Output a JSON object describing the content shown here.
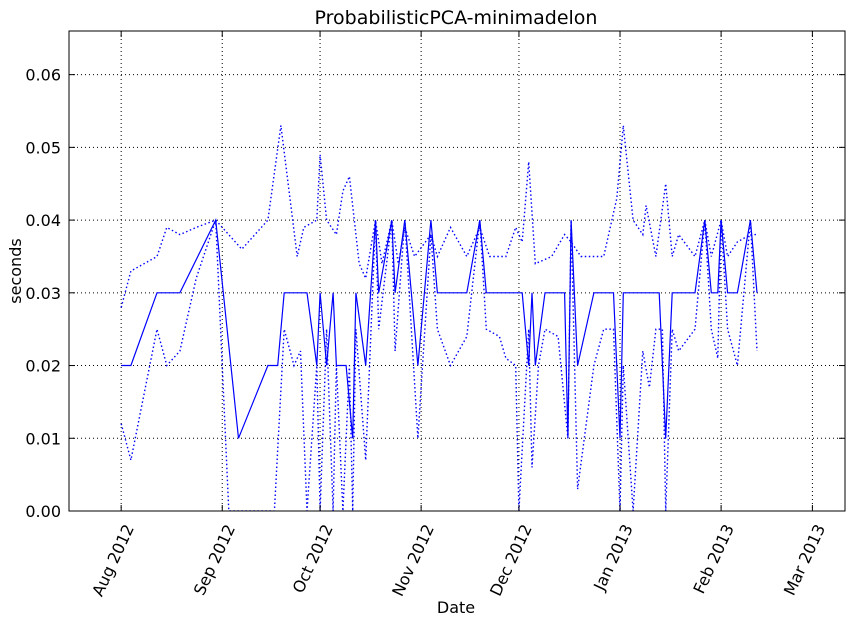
{
  "chart_data": {
    "type": "line",
    "title": "ProbabilisticPCA-minimadelon",
    "xlabel": "Date",
    "ylabel": "seconds",
    "xlim": [
      "2012-07-16",
      "2013-03-11"
    ],
    "ylim": [
      0,
      0.066
    ],
    "grid": true,
    "line_color": "#0000ff",
    "x_ticks": [
      {
        "date": "2012-08-01",
        "label": "Aug 2012"
      },
      {
        "date": "2012-09-01",
        "label": "Sep 2012"
      },
      {
        "date": "2012-10-01",
        "label": "Oct 2012"
      },
      {
        "date": "2012-11-01",
        "label": "Nov 2012"
      },
      {
        "date": "2012-12-01",
        "label": "Dec 2012"
      },
      {
        "date": "2013-01-01",
        "label": "Jan 2013"
      },
      {
        "date": "2013-02-01",
        "label": "Feb 2013"
      },
      {
        "date": "2013-03-01",
        "label": "Mar 2013"
      }
    ],
    "y_ticks": [
      {
        "value": 0.0,
        "label": "0.00"
      },
      {
        "value": 0.01,
        "label": "0.01"
      },
      {
        "value": 0.02,
        "label": "0.02"
      },
      {
        "value": 0.03,
        "label": "0.03"
      },
      {
        "value": 0.04,
        "label": "0.04"
      },
      {
        "value": 0.05,
        "label": "0.05"
      },
      {
        "value": 0.06,
        "label": "0.06"
      }
    ],
    "series": [
      {
        "style": "solid",
        "points": [
          [
            "2012-08-01",
            0.02
          ],
          [
            "2012-08-04",
            0.02
          ],
          [
            "2012-08-12",
            0.03
          ],
          [
            "2012-08-19",
            0.03
          ],
          [
            "2012-08-30",
            0.04
          ],
          [
            "2012-09-06",
            0.01
          ],
          [
            "2012-09-15",
            0.02
          ],
          [
            "2012-09-18",
            0.02
          ],
          [
            "2012-09-20",
            0.03
          ],
          [
            "2012-09-27",
            0.03
          ],
          [
            "2012-09-30",
            0.02
          ],
          [
            "2012-10-01",
            0.03
          ],
          [
            "2012-10-03",
            0.02
          ],
          [
            "2012-10-05",
            0.03
          ],
          [
            "2012-10-06",
            0.02
          ],
          [
            "2012-10-09",
            0.02
          ],
          [
            "2012-10-11",
            0.01
          ],
          [
            "2012-10-12",
            0.03
          ],
          [
            "2012-10-15",
            0.02
          ],
          [
            "2012-10-18",
            0.04
          ],
          [
            "2012-10-19",
            0.03
          ],
          [
            "2012-10-23",
            0.04
          ],
          [
            "2012-10-24",
            0.03
          ],
          [
            "2012-10-27",
            0.04
          ],
          [
            "2012-10-31",
            0.02
          ],
          [
            "2012-11-04",
            0.04
          ],
          [
            "2012-11-06",
            0.03
          ],
          [
            "2012-11-15",
            0.03
          ],
          [
            "2012-11-19",
            0.04
          ],
          [
            "2012-11-21",
            0.03
          ],
          [
            "2012-11-30",
            0.03
          ],
          [
            "2012-12-02",
            0.03
          ],
          [
            "2012-12-04",
            0.02
          ],
          [
            "2012-12-05",
            0.03
          ],
          [
            "2012-12-06",
            0.02
          ],
          [
            "2012-12-09",
            0.03
          ],
          [
            "2012-12-15",
            0.03
          ],
          [
            "2012-12-16",
            0.01
          ],
          [
            "2012-12-17",
            0.04
          ],
          [
            "2012-12-19",
            0.02
          ],
          [
            "2012-12-24",
            0.03
          ],
          [
            "2012-12-30",
            0.03
          ],
          [
            "2013-01-01",
            0.01
          ],
          [
            "2013-01-02",
            0.03
          ],
          [
            "2013-01-13",
            0.03
          ],
          [
            "2013-01-15",
            0.01
          ],
          [
            "2013-01-17",
            0.03
          ],
          [
            "2013-01-24",
            0.03
          ],
          [
            "2013-01-27",
            0.04
          ],
          [
            "2013-01-29",
            0.03
          ],
          [
            "2013-01-31",
            0.03
          ],
          [
            "2013-02-01",
            0.04
          ],
          [
            "2013-02-03",
            0.03
          ],
          [
            "2013-02-06",
            0.03
          ],
          [
            "2013-02-10",
            0.04
          ],
          [
            "2013-02-12",
            0.03
          ]
        ]
      },
      {
        "style": "dotted",
        "points": [
          [
            "2012-08-01",
            0.028
          ],
          [
            "2012-08-04",
            0.033
          ],
          [
            "2012-08-12",
            0.035
          ],
          [
            "2012-08-15",
            0.039
          ],
          [
            "2012-08-19",
            0.038
          ],
          [
            "2012-08-24",
            0.039
          ],
          [
            "2012-08-30",
            0.04
          ],
          [
            "2012-09-07",
            0.036
          ],
          [
            "2012-09-15",
            0.04
          ],
          [
            "2012-09-19",
            0.053
          ],
          [
            "2012-09-24",
            0.035
          ],
          [
            "2012-09-26",
            0.039
          ],
          [
            "2012-09-30",
            0.04
          ],
          [
            "2012-10-01",
            0.049
          ],
          [
            "2012-10-03",
            0.04
          ],
          [
            "2012-10-06",
            0.038
          ],
          [
            "2012-10-08",
            0.044
          ],
          [
            "2012-10-10",
            0.046
          ],
          [
            "2012-10-13",
            0.034
          ],
          [
            "2012-10-15",
            0.032
          ],
          [
            "2012-10-18",
            0.04
          ],
          [
            "2012-10-20",
            0.034
          ],
          [
            "2012-10-23",
            0.04
          ],
          [
            "2012-10-25",
            0.034
          ],
          [
            "2012-10-27",
            0.039
          ],
          [
            "2012-10-30",
            0.035
          ],
          [
            "2012-11-04",
            0.038
          ],
          [
            "2012-11-06",
            0.035
          ],
          [
            "2012-11-10",
            0.039
          ],
          [
            "2012-11-15",
            0.035
          ],
          [
            "2012-11-19",
            0.039
          ],
          [
            "2012-11-22",
            0.035
          ],
          [
            "2012-11-27",
            0.035
          ],
          [
            "2012-11-30",
            0.039
          ],
          [
            "2012-12-02",
            0.037
          ],
          [
            "2012-12-04",
            0.048
          ],
          [
            "2012-12-06",
            0.034
          ],
          [
            "2012-12-11",
            0.035
          ],
          [
            "2012-12-15",
            0.038
          ],
          [
            "2012-12-17",
            0.037
          ],
          [
            "2012-12-20",
            0.035
          ],
          [
            "2012-12-27",
            0.035
          ],
          [
            "2012-12-31",
            0.043
          ],
          [
            "2013-01-02",
            0.053
          ],
          [
            "2013-01-05",
            0.04
          ],
          [
            "2013-01-08",
            0.038
          ],
          [
            "2013-01-09",
            0.042
          ],
          [
            "2013-01-12",
            0.035
          ],
          [
            "2013-01-15",
            0.045
          ],
          [
            "2013-01-17",
            0.035
          ],
          [
            "2013-01-19",
            0.038
          ],
          [
            "2013-01-24",
            0.035
          ],
          [
            "2013-01-27",
            0.04
          ],
          [
            "2013-01-29",
            0.035
          ],
          [
            "2013-02-01",
            0.04
          ],
          [
            "2013-02-03",
            0.035
          ],
          [
            "2013-02-06",
            0.037
          ],
          [
            "2013-02-10",
            0.038
          ],
          [
            "2013-02-12",
            0.038
          ]
        ]
      },
      {
        "style": "dotted",
        "points": [
          [
            "2012-08-01",
            0.012
          ],
          [
            "2012-08-04",
            0.007
          ],
          [
            "2012-08-12",
            0.025
          ],
          [
            "2012-08-15",
            0.02
          ],
          [
            "2012-08-19",
            0.022
          ],
          [
            "2012-08-24",
            0.032
          ],
          [
            "2012-08-30",
            0.04
          ],
          [
            "2012-09-03",
            0.0
          ],
          [
            "2012-09-17",
            0.0
          ],
          [
            "2012-09-20",
            0.025
          ],
          [
            "2012-09-23",
            0.02
          ],
          [
            "2012-09-25",
            0.022
          ],
          [
            "2012-09-27",
            0.0
          ],
          [
            "2012-09-30",
            0.02
          ],
          [
            "2012-10-01",
            0.0
          ],
          [
            "2012-10-03",
            0.025
          ],
          [
            "2012-10-05",
            0.0
          ],
          [
            "2012-10-06",
            0.02
          ],
          [
            "2012-10-08",
            0.0
          ],
          [
            "2012-10-10",
            0.02
          ],
          [
            "2012-10-11",
            0.0
          ],
          [
            "2012-10-12",
            0.025
          ],
          [
            "2012-10-15",
            0.007
          ],
          [
            "2012-10-18",
            0.04
          ],
          [
            "2012-10-19",
            0.025
          ],
          [
            "2012-10-23",
            0.04
          ],
          [
            "2012-10-24",
            0.022
          ],
          [
            "2012-10-27",
            0.04
          ],
          [
            "2012-10-31",
            0.01
          ],
          [
            "2012-11-04",
            0.038
          ],
          [
            "2012-11-06",
            0.025
          ],
          [
            "2012-11-10",
            0.02
          ],
          [
            "2012-11-15",
            0.024
          ],
          [
            "2012-11-19",
            0.04
          ],
          [
            "2012-11-21",
            0.025
          ],
          [
            "2012-11-25",
            0.024
          ],
          [
            "2012-11-27",
            0.021
          ],
          [
            "2012-11-30",
            0.02
          ],
          [
            "2012-12-01",
            0.0
          ],
          [
            "2012-12-04",
            0.025
          ],
          [
            "2012-12-05",
            0.006
          ],
          [
            "2012-12-07",
            0.02
          ],
          [
            "2012-12-09",
            0.025
          ],
          [
            "2012-12-13",
            0.024
          ],
          [
            "2012-12-16",
            0.01
          ],
          [
            "2012-12-17",
            0.04
          ],
          [
            "2012-12-19",
            0.003
          ],
          [
            "2012-12-24",
            0.02
          ],
          [
            "2012-12-27",
            0.025
          ],
          [
            "2012-12-30",
            0.025
          ],
          [
            "2013-01-01",
            0.0
          ],
          [
            "2013-01-02",
            0.02
          ],
          [
            "2013-01-05",
            0.0
          ],
          [
            "2013-01-08",
            0.022
          ],
          [
            "2013-01-10",
            0.017
          ],
          [
            "2013-01-12",
            0.025
          ],
          [
            "2013-01-14",
            0.025
          ],
          [
            "2013-01-15",
            0.0
          ],
          [
            "2013-01-17",
            0.025
          ],
          [
            "2013-01-19",
            0.022
          ],
          [
            "2013-01-24",
            0.025
          ],
          [
            "2013-01-27",
            0.04
          ],
          [
            "2013-01-29",
            0.025
          ],
          [
            "2013-01-31",
            0.021
          ],
          [
            "2013-02-01",
            0.04
          ],
          [
            "2013-02-03",
            0.025
          ],
          [
            "2013-02-06",
            0.02
          ],
          [
            "2013-02-10",
            0.04
          ],
          [
            "2013-02-12",
            0.022
          ]
        ]
      }
    ]
  }
}
